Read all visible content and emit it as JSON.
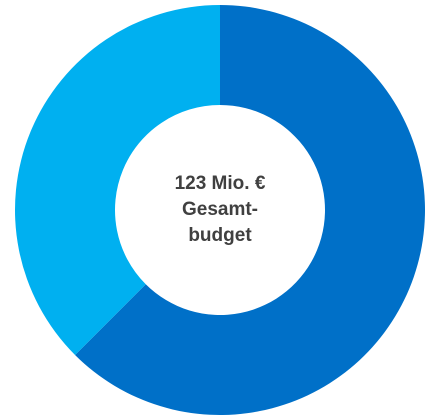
{
  "chart_data": {
    "type": "donut",
    "values": [
      62.5,
      37.5
    ],
    "colors": [
      "#0070c8",
      "#00b0f0"
    ],
    "center_label": [
      "123 Mio. €",
      "Gesamt-",
      "budget"
    ]
  }
}
